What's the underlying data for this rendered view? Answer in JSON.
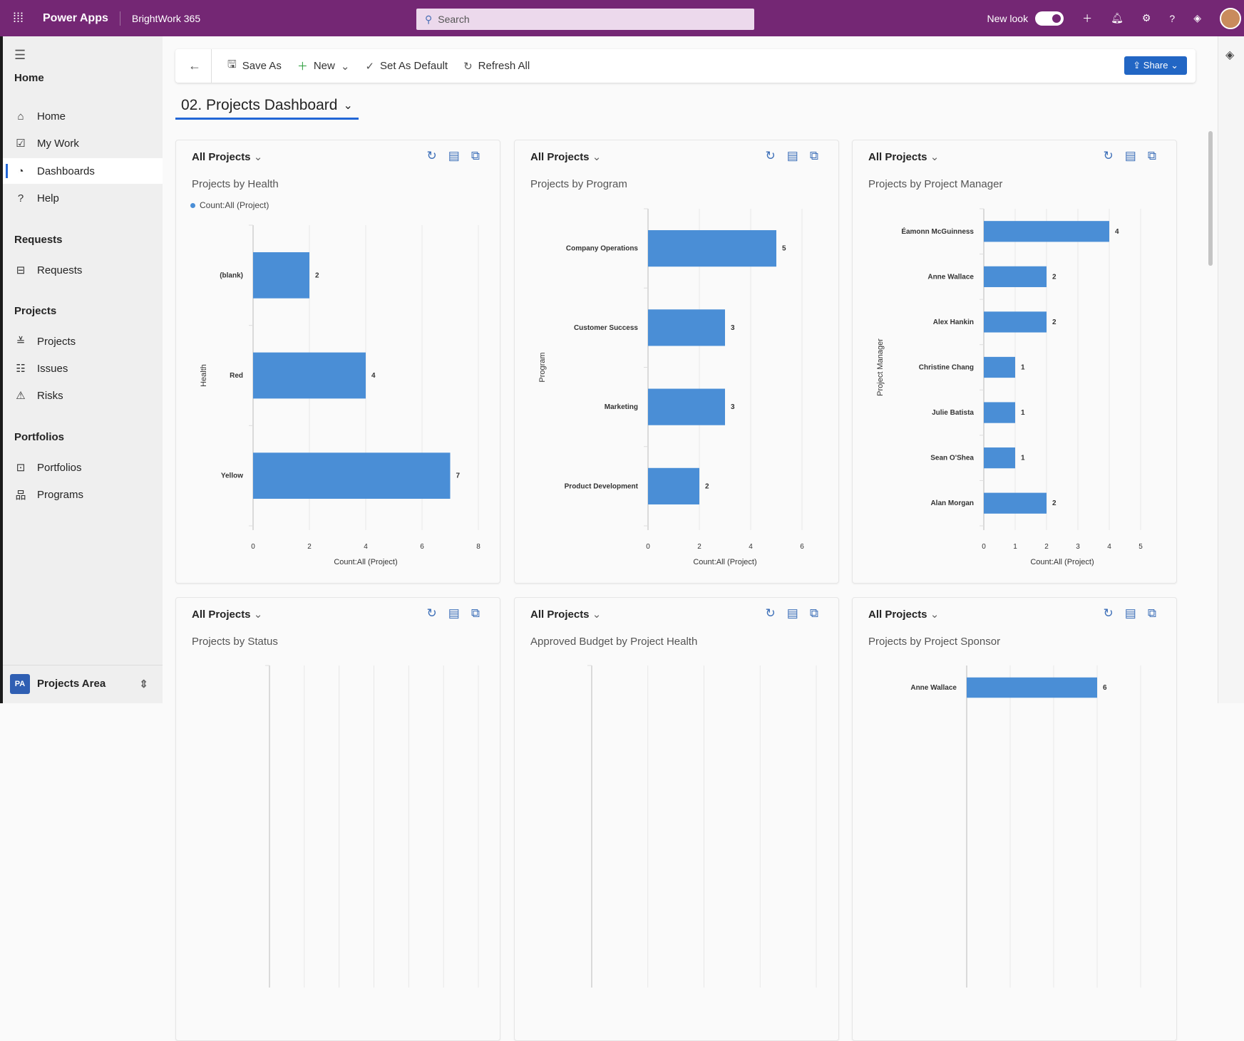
{
  "topbar": {
    "app_name": "Power Apps",
    "environment": "BrightWork 365",
    "search_placeholder": "Search",
    "new_look_label": "New look",
    "new_look_on": true
  },
  "sidebar": {
    "sections": [
      {
        "title": "Home",
        "items": [
          {
            "label": "Home",
            "icon": "home-icon"
          },
          {
            "label": "My Work",
            "icon": "checkbox-icon"
          },
          {
            "label": "Dashboards",
            "icon": "dashboard-icon",
            "active": true
          },
          {
            "label": "Help",
            "icon": "help-icon"
          }
        ]
      },
      {
        "title": "Requests",
        "items": [
          {
            "label": "Requests",
            "icon": "inbox-icon"
          }
        ]
      },
      {
        "title": "Projects",
        "items": [
          {
            "label": "Projects",
            "icon": "projects-icon"
          },
          {
            "label": "Issues",
            "icon": "issues-icon"
          },
          {
            "label": "Risks",
            "icon": "warning-icon"
          }
        ]
      },
      {
        "title": "Portfolios",
        "items": [
          {
            "label": "Portfolios",
            "icon": "briefcase-icon"
          },
          {
            "label": "Programs",
            "icon": "hierarchy-icon"
          }
        ]
      }
    ],
    "area": {
      "badge": "PA",
      "label": "Projects Area"
    }
  },
  "toolbar": {
    "save_as": "Save As",
    "new": "New",
    "set_default": "Set As Default",
    "refresh_all": "Refresh All",
    "share": "Share"
  },
  "dashboard": {
    "title": "02. Projects Dashboard"
  },
  "colors": {
    "bar": "#4a8ed6",
    "brand": "#742774",
    "accent": "#2266d6"
  },
  "chart_data": [
    {
      "type": "bar",
      "view": "All Projects",
      "title": "Projects by Health",
      "legend": "Count:All (Project)",
      "categories": [
        "(blank)",
        "Red",
        "Yellow"
      ],
      "values": [
        2,
        4,
        7
      ],
      "xlabel": "Count:All (Project)",
      "ylabel": "Health",
      "xlim": [
        0,
        8
      ],
      "xticks": [
        0,
        2,
        4,
        6,
        8
      ]
    },
    {
      "type": "bar",
      "view": "All Projects",
      "title": "Projects by Program",
      "categories": [
        "Company Operations",
        "Customer Success",
        "Marketing",
        "Product Development"
      ],
      "values": [
        5,
        3,
        3,
        2
      ],
      "xlabel": "Count:All (Project)",
      "ylabel": "Program",
      "xlim": [
        0,
        6
      ],
      "xticks": [
        0,
        2,
        4,
        6
      ]
    },
    {
      "type": "bar",
      "view": "All Projects",
      "title": "Projects by Project Manager",
      "categories": [
        "Éamonn McGuinness",
        "Anne Wallace",
        "Alex Hankin",
        "Christine Chang",
        "Julie Batista",
        "Sean O'Shea",
        "Alan Morgan"
      ],
      "values": [
        4,
        2,
        2,
        1,
        1,
        1,
        2
      ],
      "xlabel": "Count:All (Project)",
      "ylabel": "Project Manager",
      "xlim": [
        0,
        5
      ],
      "xticks": [
        0,
        1,
        2,
        3,
        4,
        5
      ]
    },
    {
      "type": "bar",
      "view": "All Projects",
      "title": "Projects by Status",
      "categories": [],
      "values": []
    },
    {
      "type": "bar",
      "view": "All Projects",
      "title": "Approved Budget by Project Health",
      "categories": [],
      "values": []
    },
    {
      "type": "bar",
      "view": "All Projects",
      "title": "Projects by Project Sponsor",
      "categories": [
        "Anne Wallace"
      ],
      "values": [
        6
      ],
      "xlim": [
        0,
        8
      ]
    }
  ]
}
